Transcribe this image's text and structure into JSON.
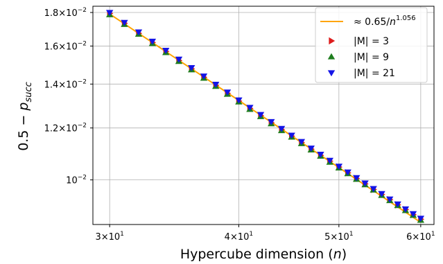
{
  "chart_data": {
    "type": "scatter",
    "xscale": "log",
    "yscale": "log",
    "xlim": [
      28.9,
      61.8
    ],
    "ylim": [
      0.00855,
      0.0184
    ],
    "grid": true,
    "legend_position": "top-right",
    "xlabel": "Hypercube dimension (",
    "xlabel_var": "n",
    "xlabel_close": ")",
    "ylabel": "0.5 − ",
    "ylabel_var": "p",
    "ylabel_sub": "succ",
    "x_ticks": [
      {
        "value": 30,
        "mant": "3",
        "exp": "1"
      },
      {
        "value": 40,
        "mant": "4",
        "exp": "1"
      },
      {
        "value": 50,
        "mant": "5",
        "exp": "1"
      },
      {
        "value": 60,
        "mant": "6",
        "exp": "1"
      }
    ],
    "y_ticks": [
      {
        "value": 0.01,
        "mant": "",
        "exp": "−2"
      },
      {
        "value": 0.012,
        "mant": "1.2",
        "exp": "−2"
      },
      {
        "value": 0.014,
        "mant": "1.4",
        "exp": "−2"
      },
      {
        "value": 0.016,
        "mant": "1.6",
        "exp": "−2"
      },
      {
        "value": 0.018,
        "mant": "1.8",
        "exp": "−2"
      }
    ],
    "fit": {
      "label_prefix": "≈ 0.65/",
      "label_var": "n",
      "label_exp": "1.056",
      "coefficient": 0.65,
      "exponent": 1.056,
      "color": "#ffa500"
    },
    "x": [
      30,
      31,
      32,
      33,
      34,
      35,
      36,
      37,
      38,
      39,
      40,
      41,
      42,
      43,
      44,
      45,
      46,
      47,
      48,
      49,
      50,
      51,
      52,
      53,
      54,
      55,
      56,
      57,
      58,
      59,
      60
    ],
    "series": [
      {
        "name": "|M| = 3",
        "marker": "triangle-right",
        "color": "#dd1c1c",
        "values": [
          0.01794,
          0.01733,
          0.01673,
          0.0162,
          0.0157,
          0.01521,
          0.01477,
          0.01434,
          0.01393,
          0.01355,
          0.01319,
          0.01285,
          0.01253,
          0.01222,
          0.01193,
          0.01166,
          0.0114,
          0.01114,
          0.0109,
          0.01068,
          0.01046,
          0.01025,
          0.01005,
          0.00986,
          0.00967,
          0.0095,
          0.00933,
          0.00916,
          0.00901,
          0.00885,
          0.00871
        ]
      },
      {
        "name": "|M| = 9",
        "marker": "triangle-up",
        "color": "#1e7d1e",
        "values": [
          0.01786,
          0.01726,
          0.01668,
          0.01614,
          0.01564,
          0.01516,
          0.01472,
          0.01429,
          0.01389,
          0.01351,
          0.01315,
          0.01281,
          0.01249,
          0.01218,
          0.01189,
          0.01162,
          0.01136,
          0.01111,
          0.01087,
          0.01064,
          0.01043,
          0.01022,
          0.01002,
          0.00983,
          0.00965,
          0.00947,
          0.0093,
          0.00914,
          0.00898,
          0.00883,
          0.00868
        ]
      },
      {
        "name": "|M| = 21",
        "marker": "triangle-down",
        "color": "#1414e6",
        "values": [
          0.018,
          0.01738,
          0.01681,
          0.01627,
          0.01576,
          0.01528,
          0.01483,
          0.0144,
          0.01399,
          0.01361,
          0.01324,
          0.0129,
          0.01258,
          0.01227,
          0.01198,
          0.0117,
          0.01144,
          0.01118,
          0.01094,
          0.01071,
          0.01049,
          0.01028,
          0.01008,
          0.00989,
          0.0097,
          0.00953,
          0.00935,
          0.00919,
          0.00903,
          0.00888,
          0.00874
        ]
      }
    ]
  }
}
